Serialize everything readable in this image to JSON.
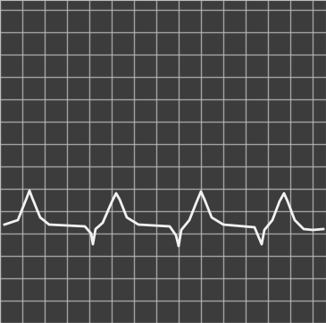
{
  "chart_data": {
    "type": "line",
    "x": [
      5,
      20,
      30,
      33,
      36,
      45,
      55,
      95,
      102,
      104,
      107,
      115,
      125,
      130,
      134,
      142,
      155,
      190,
      197,
      200,
      203,
      212,
      220,
      225,
      229,
      237,
      250,
      285,
      290,
      293,
      296,
      305,
      313,
      318,
      322,
      330,
      340,
      350,
      362
    ],
    "values": [
      110,
      115,
      140,
      148,
      140,
      118,
      110,
      108,
      100,
      88,
      105,
      112,
      135,
      145,
      138,
      118,
      110,
      108,
      98,
      86,
      104,
      115,
      135,
      147,
      138,
      118,
      110,
      107,
      95,
      88,
      104,
      115,
      136,
      145,
      136,
      115,
      105,
      104,
      105
    ],
    "color": "#f2f2f2",
    "xlim": [
      0,
      365
    ],
    "ylim": [
      0,
      361
    ],
    "xticks": [
      0,
      25,
      50,
      75,
      100,
      125,
      150,
      175,
      200,
      225,
      250,
      275,
      300,
      325,
      350
    ],
    "yticks": [
      0,
      25,
      50,
      75,
      100,
      125,
      150,
      175,
      200,
      225,
      250,
      275,
      300,
      325,
      350
    ],
    "grid": true,
    "tick_labels": false,
    "line_style": "solid"
  }
}
